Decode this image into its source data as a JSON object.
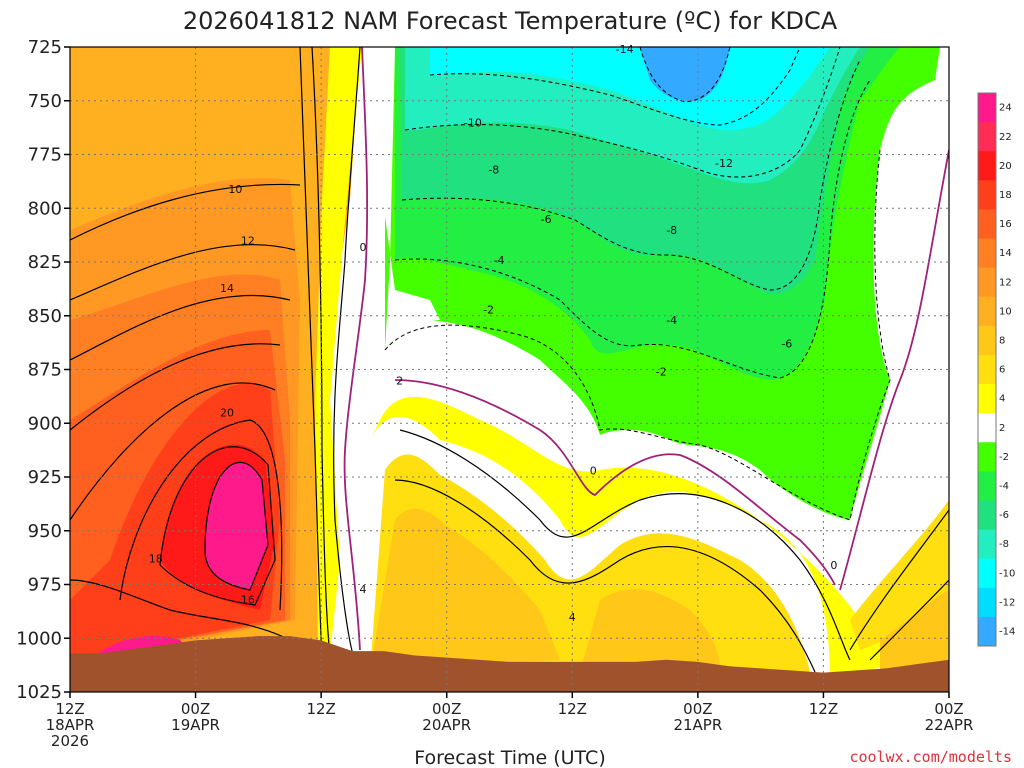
{
  "chart_data": {
    "type": "contour",
    "title": "2026041812 NAM Forecast Temperature (ºC) for KDCA",
    "xlabel": "Forecast Time (UTC)",
    "ylabel": "",
    "credit": "coolwx.com/modelts",
    "y_axis": {
      "scale": "pressure (hPa), inverted",
      "ticks": [
        "725",
        "750",
        "775",
        "800",
        "825",
        "850",
        "875",
        "900",
        "925",
        "950",
        "975",
        "1000",
        "1025"
      ],
      "ylim": [
        725,
        1025
      ]
    },
    "x_axis": {
      "xlim_hours": [
        0,
        84
      ],
      "ticks": [
        {
          "hour": 0,
          "lines": [
            "12Z",
            "18APR",
            "2026"
          ]
        },
        {
          "hour": 12,
          "lines": [
            "00Z",
            "19APR"
          ]
        },
        {
          "hour": 24,
          "lines": [
            "12Z"
          ]
        },
        {
          "hour": 36,
          "lines": [
            "00Z",
            "20APR"
          ]
        },
        {
          "hour": 48,
          "lines": [
            "12Z"
          ]
        },
        {
          "hour": 60,
          "lines": [
            "00Z",
            "21APR"
          ]
        },
        {
          "hour": 72,
          "lines": [
            "12Z"
          ]
        },
        {
          "hour": 84,
          "lines": [
            "00Z",
            "22APR"
          ]
        }
      ]
    },
    "grid": true,
    "colorbar": {
      "position": "right",
      "labels": [
        "24",
        "22",
        "20",
        "18",
        "16",
        "14",
        "12",
        "10",
        "8",
        "6",
        "4",
        "2",
        "-2",
        "-4",
        "-6",
        "-8",
        "-10",
        "-12",
        "-14"
      ],
      "colors": [
        "#ff1a8c",
        "#ff2d55",
        "#ff1a1a",
        "#ff3f1a",
        "#ff6020",
        "#ff7f22",
        "#ff9924",
        "#ffb020",
        "#ffc818",
        "#ffdf10",
        "#ffff00",
        "#ffffff",
        "#44ff00",
        "#22ee44",
        "#20e080",
        "#22eec0",
        "#00ffff",
        "#00ddff",
        "#33aaff"
      ]
    },
    "contour_labels": [
      {
        "text": "-14",
        "hour": 53.0,
        "p": 726
      },
      {
        "text": "-10",
        "hour": 38.5,
        "p": 760
      },
      {
        "text": "-12",
        "hour": 62.5,
        "p": 779
      },
      {
        "text": "-8",
        "hour": 40.5,
        "p": 782
      },
      {
        "text": "-6",
        "hour": 45.5,
        "p": 805
      },
      {
        "text": "-8",
        "hour": 57.5,
        "p": 810
      },
      {
        "text": "-4",
        "hour": 41.0,
        "p": 824
      },
      {
        "text": "-2",
        "hour": 40.0,
        "p": 847
      },
      {
        "text": "-4",
        "hour": 57.5,
        "p": 852
      },
      {
        "text": "-6",
        "hour": 68.5,
        "p": 863
      },
      {
        "text": "-2",
        "hour": 56.5,
        "p": 876
      },
      {
        "text": "0",
        "hour": 28.0,
        "p": 818
      },
      {
        "text": "2",
        "hour": 31.5,
        "p": 880
      },
      {
        "text": "0",
        "hour": 50.0,
        "p": 922
      },
      {
        "text": "0",
        "hour": 73.0,
        "p": 966
      },
      {
        "text": "4",
        "hour": 28.0,
        "p": 977
      },
      {
        "text": "4",
        "hour": 48.0,
        "p": 990
      },
      {
        "text": "10",
        "hour": 15.8,
        "p": 791
      },
      {
        "text": "12",
        "hour": 17.0,
        "p": 815
      },
      {
        "text": "14",
        "hour": 15.0,
        "p": 837
      },
      {
        "text": "20",
        "hour": 15.0,
        "p": 895
      },
      {
        "text": "18",
        "hour": 8.2,
        "p": 963
      },
      {
        "text": "16",
        "hour": 17.0,
        "p": 982
      }
    ],
    "surface_pressure": [
      [
        0,
        1007
      ],
      [
        3,
        1007
      ],
      [
        6,
        1005
      ],
      [
        9,
        1003
      ],
      [
        12,
        1001
      ],
      [
        15,
        1000
      ],
      [
        18,
        999
      ],
      [
        21,
        999
      ],
      [
        24,
        1001
      ],
      [
        27,
        1006
      ],
      [
        30,
        1006
      ],
      [
        33,
        1008
      ],
      [
        36,
        1009
      ],
      [
        39,
        1010
      ],
      [
        42,
        1011
      ],
      [
        45,
        1011
      ],
      [
        48,
        1011
      ],
      [
        51,
        1011
      ],
      [
        54,
        1011
      ],
      [
        57,
        1010
      ],
      [
        60,
        1011
      ],
      [
        63,
        1013
      ],
      [
        66,
        1014
      ],
      [
        69,
        1015
      ],
      [
        72,
        1016
      ],
      [
        75,
        1015
      ],
      [
        78,
        1014
      ],
      [
        81,
        1012
      ],
      [
        84,
        1010
      ]
    ]
  }
}
